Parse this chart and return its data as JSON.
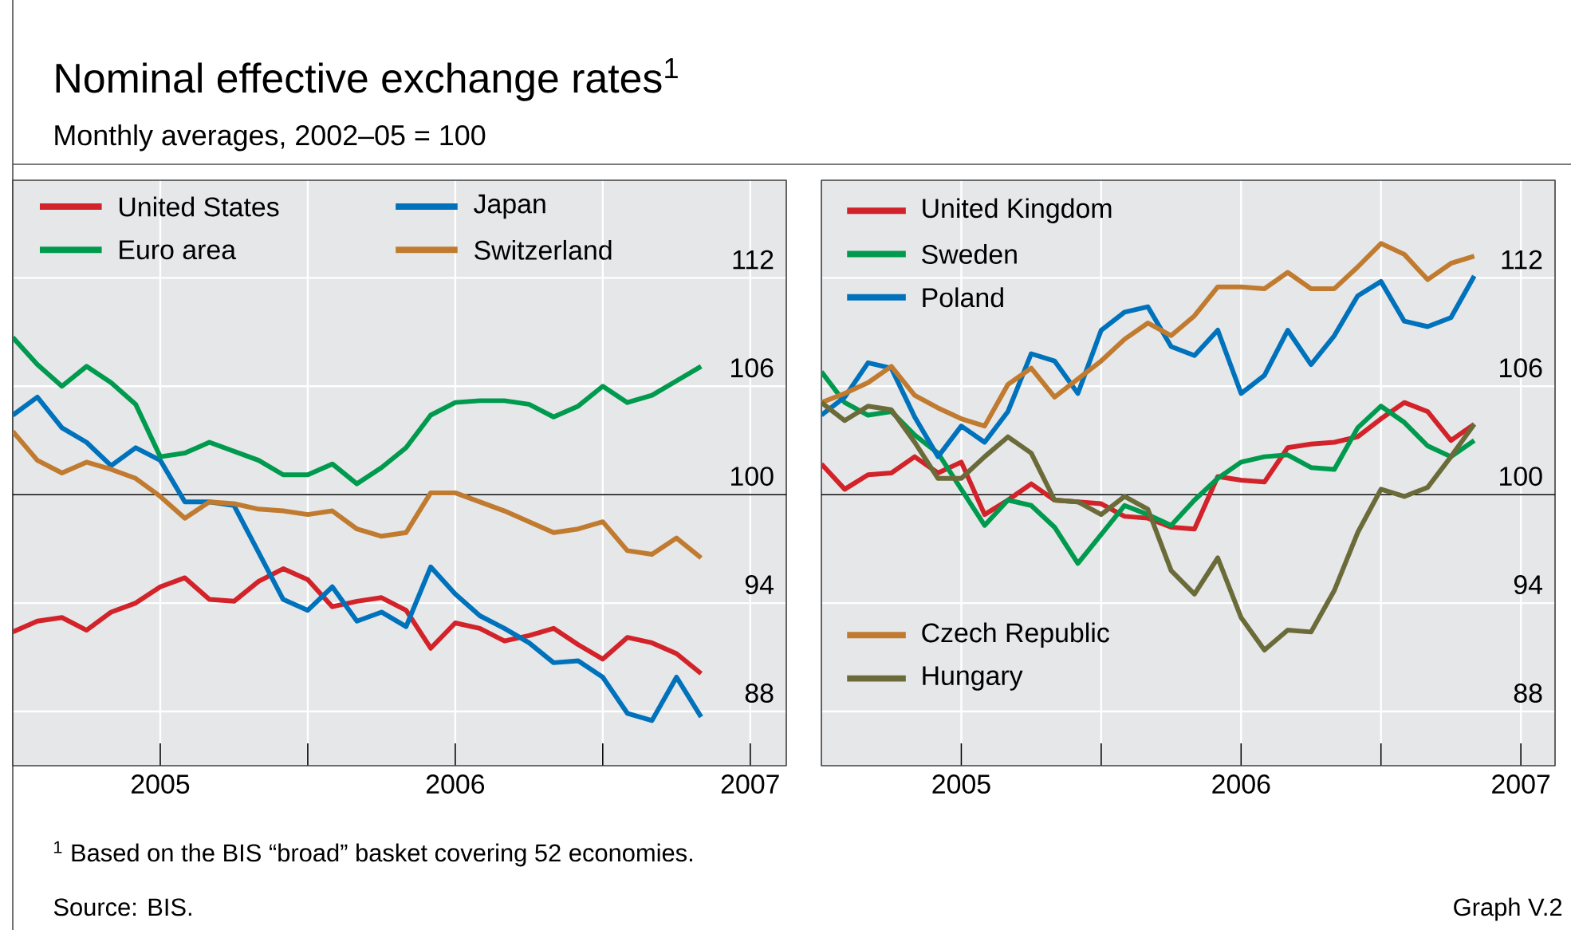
{
  "chart_data": [
    {
      "type": "line",
      "title": "Nominal effective exchange rates$^{1}$",
      "subtitle": "Monthly averages, 2002–05 = 100",
      "annotations": [
        "$^{1}$ Based on the BIS “broad” basket covering 52 economies.",
        "Source: BIS.",
        "Graph V.2"
      ],
      "x": [
        "2005-01",
        "2005-02",
        "2005-03",
        "2005-04",
        "2005-05",
        "2005-06",
        "2005-07",
        "2005-08",
        "2005-09",
        "2005-10",
        "2005-11",
        "2005-12",
        "2006-01",
        "2006-02",
        "2006-03",
        "2006-04",
        "2006-05",
        "2006-06",
        "2006-07",
        "2006-08",
        "2006-09",
        "2006-10",
        "2006-11",
        "2006-12",
        "2007-01",
        "2007-02",
        "2007-03",
        "2007-04",
        "2007-05"
      ],
      "xlim": [
        "2005-01",
        "2007-08-15"
      ],
      "xticks": [
        {
          "value": "2005-07",
          "label": "2005"
        },
        {
          "value": "2006-01",
          "label": null
        },
        {
          "value": "2006-07",
          "label": "2006"
        },
        {
          "value": "2007-01",
          "label": null
        },
        {
          "value": "2007-07",
          "label": "2007"
        }
      ],
      "ylim": [
        85,
        117.4
      ],
      "yticks": [
        88,
        94,
        100,
        106,
        112
      ],
      "grid": true,
      "legend": "top left",
      "ref_lines": [
        {
          "axis": "y",
          "value": 100
        }
      ],
      "series": [
        {
          "name": "United States",
          "color": "#d2232a",
          "values": [
            92.4,
            93.0,
            93.2,
            92.5,
            93.5,
            94.0,
            94.9,
            95.4,
            94.2,
            94.1,
            95.2,
            95.9,
            95.3,
            93.8,
            94.1,
            94.3,
            93.6,
            91.5,
            92.9,
            92.6,
            91.9,
            92.2,
            92.6,
            91.7,
            90.9,
            92.1,
            91.8,
            91.2,
            90.1
          ]
        },
        {
          "name": "Japan",
          "color": "#0072bc",
          "values": [
            104.4,
            105.4,
            103.7,
            102.9,
            101.6,
            102.6,
            101.9,
            99.6,
            99.6,
            99.4,
            96.8,
            94.2,
            93.6,
            94.9,
            93.0,
            93.5,
            92.7,
            96.0,
            94.5,
            93.3,
            92.6,
            91.8,
            90.7,
            90.8,
            89.9,
            87.9,
            87.5,
            89.9,
            87.7
          ]
        },
        {
          "name": "Euro area",
          "color": "#009a4e",
          "values": [
            108.7,
            107.2,
            106.0,
            107.1,
            106.2,
            105.0,
            102.1,
            102.3,
            102.9,
            102.4,
            101.9,
            101.1,
            101.1,
            101.7,
            100.6,
            101.5,
            102.6,
            104.4,
            105.1,
            105.2,
            105.2,
            105.0,
            104.3,
            104.9,
            106.0,
            105.1,
            105.5,
            106.3,
            107.1
          ]
        },
        {
          "name": "Switzerland",
          "color": "#c07b30",
          "values": [
            103.5,
            101.9,
            101.2,
            101.8,
            101.4,
            100.9,
            99.9,
            98.7,
            99.6,
            99.5,
            99.2,
            99.1,
            98.9,
            99.1,
            98.1,
            97.7,
            97.9,
            100.1,
            100.1,
            99.6,
            99.1,
            98.5,
            97.9,
            98.1,
            98.5,
            96.9,
            96.7,
            97.6,
            96.5
          ]
        }
      ]
    },
    {
      "type": "line",
      "x": [
        "2005-01",
        "2005-02",
        "2005-03",
        "2005-04",
        "2005-05",
        "2005-06",
        "2005-07",
        "2005-08",
        "2005-09",
        "2005-10",
        "2005-11",
        "2005-12",
        "2006-01",
        "2006-02",
        "2006-03",
        "2006-04",
        "2006-05",
        "2006-06",
        "2006-07",
        "2006-08",
        "2006-09",
        "2006-10",
        "2006-11",
        "2006-12",
        "2007-01",
        "2007-02",
        "2007-03",
        "2007-04",
        "2007-05"
      ],
      "xlim": [
        "2005-01",
        "2007-08-15"
      ],
      "xticks": [
        {
          "value": "2005-07",
          "label": "2005"
        },
        {
          "value": "2006-01",
          "label": null
        },
        {
          "value": "2006-07",
          "label": "2006"
        },
        {
          "value": "2007-01",
          "label": null
        },
        {
          "value": "2007-07",
          "label": "2007"
        }
      ],
      "ylim": [
        85,
        117.4
      ],
      "yticks": [
        88,
        94,
        100,
        106,
        112
      ],
      "grid": true,
      "legend": "left",
      "ref_lines": [
        {
          "axis": "y",
          "value": 100
        }
      ],
      "series": [
        {
          "name": "United Kingdom",
          "color": "#d2232a",
          "values": [
            101.7,
            100.3,
            101.1,
            101.2,
            102.1,
            101.2,
            101.8,
            98.9,
            99.7,
            100.6,
            99.7,
            99.6,
            99.5,
            98.8,
            98.7,
            98.2,
            98.1,
            101.0,
            100.8,
            100.7,
            102.6,
            102.8,
            102.9,
            103.2,
            104.2,
            105.1,
            104.6,
            103.0,
            103.9
          ]
        },
        {
          "name": "Sweden",
          "color": "#009a4e",
          "values": [
            106.8,
            105.1,
            104.4,
            104.6,
            103.3,
            102.3,
            100.3,
            98.3,
            99.7,
            99.4,
            98.2,
            96.2,
            97.8,
            99.4,
            98.9,
            98.3,
            99.7,
            100.9,
            101.8,
            102.1,
            102.2,
            101.5,
            101.4,
            103.7,
            104.9,
            104.0,
            102.7,
            102.1,
            103.0
          ]
        },
        {
          "name": "Poland",
          "color": "#0072bc",
          "values": [
            104.4,
            105.4,
            107.3,
            107.0,
            104.3,
            102.1,
            103.8,
            102.9,
            104.6,
            107.8,
            107.4,
            105.6,
            109.1,
            110.1,
            110.4,
            108.2,
            107.7,
            109.1,
            105.6,
            106.6,
            109.1,
            107.2,
            108.8,
            111.0,
            111.8,
            109.6,
            109.3,
            109.8,
            112.1
          ]
        },
        {
          "name": "Czech Republic",
          "color": "#c07b30",
          "values": [
            105.1,
            105.6,
            106.2,
            107.1,
            105.5,
            104.8,
            104.2,
            103.8,
            106.1,
            107.0,
            105.4,
            106.4,
            107.4,
            108.6,
            109.5,
            108.8,
            109.9,
            111.5,
            111.5,
            111.4,
            112.3,
            111.4,
            111.4,
            112.6,
            113.9,
            113.3,
            111.9,
            112.8,
            113.2
          ]
        },
        {
          "name": "Hungary",
          "color": "#6b6b3a",
          "values": [
            105.1,
            104.1,
            104.9,
            104.7,
            102.9,
            100.9,
            100.9,
            102.1,
            103.2,
            102.3,
            99.7,
            99.6,
            98.9,
            99.9,
            99.2,
            95.8,
            94.5,
            96.5,
            93.2,
            91.4,
            92.5,
            92.4,
            94.7,
            97.9,
            100.3,
            99.9,
            100.4,
            102.1,
            103.9
          ]
        }
      ]
    }
  ]
}
